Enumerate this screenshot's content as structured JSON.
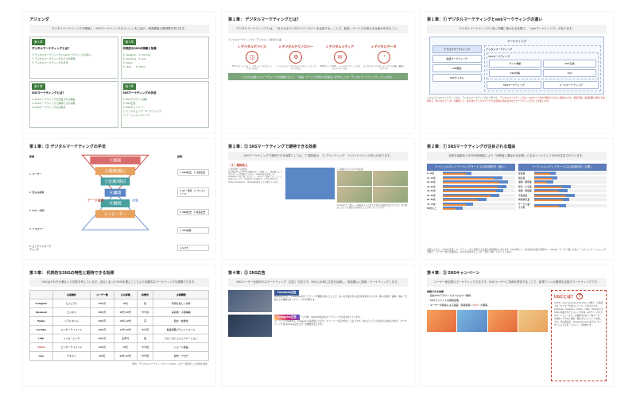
{
  "slides": {
    "s1": {
      "title": "アジェンダ",
      "subtitle": "デジタルマーケティングの概論と、SNSマーケティングのメリットをご紹介。新規顧客の獲得策を学びます。",
      "boxes": [
        {
          "chap": "第１章",
          "label": "デジタルマーケティングとは？",
          "items": [
            "デジタルマーケティングとwebマーケティングの違い",
            "デジタルマーケティングの５つの特徴",
            "デジタルマーケティングの手法"
          ]
        },
        {
          "chap": "第３章",
          "label": "代表的なSNSの特徴と効果",
          "items": [
            "Instagram　④ YouTube",
            "Facebook　⑤ note",
            "Twitter",
            "LINE　　⑥ TikTok"
          ]
        },
        {
          "chap": "第２章",
          "label": "SNSマーケティングとは？",
          "items": [
            "SNSマーケティングが注目される理由",
            "SNSマーケティングで期待できる効果",
            "SNSマーケティングの注意点"
          ]
        },
        {
          "chap": "第４章",
          "label": "SNSマーケティングの手法",
          "items": [
            "SNSアカウント運用",
            "SNS広告",
            "SNSキャンペーン",
            "インフルエンサーマーケティング",
            "ソーシャルリスニング"
          ]
        }
      ]
    },
    "s2": {
      "title": "第１章： デジタルマーケティングとは？",
      "subtitle": "デジタルマーケティングとは、『あらゆるデジタルテクノロジーを活用する』ことで、製品・サービスが売れる仕組みを作ること。",
      "lead": "デジタルマーケティングで『デジタル』と呼ばれる事。",
      "items": [
        {
          "num": "1",
          "label": "デジタルデバイス",
          "icon": "◫",
          "desc": "PCやスマートフォン、タブレットやスマートウォッチなど"
        },
        {
          "num": "2",
          "label": "デジタルテクノロジー",
          "icon": "⚙",
          "desc": "インターネットなどのテクノロジー・ビッグデータなど"
        },
        {
          "num": "3",
          "label": "デジタルメディア",
          "icon": "✉",
          "desc": "WEBサイトやSNS、メールやアプリ、デジタルサイネージなど"
        },
        {
          "num": "4",
          "label": "デジタルデータ",
          "icon": "◔",
          "desc": "デジタルデバイスやメディアから収集・蓄積したデータ"
        }
      ],
      "footer": "これらを活用してマーケティングの施策を立てて、「商品・サービスが売れる仕組み」を作ることを『デジタルマーケティング』といいます。"
    },
    "s3": {
      "title": "第１章：① デジタルマーケティングとwebマーケティングの違い",
      "subtitle": "デジタルマーケティングと良く同義に使われる言葉で、「webマーケティング」があります。",
      "box_title": "マーケティング",
      "analog": "アナログマーケティング",
      "analog_items": [
        "電話マーケティング",
        "DM発送",
        "SNSチャネル"
      ],
      "digital": "デジタルマーケティング",
      "web": "Webマーケティング",
      "web_items": [
        "サイト構築",
        "SEO対策",
        "Web広告",
        "LPO"
      ],
      "digital_items": [
        "SNSマーケティング",
        "メールマーケティング"
      ],
      "note1": "このようにwebマーケティングは、デジタルマーケティングの一部です。",
      "note2": "デジタルマーケティングは、webサイト内の行動だけでなく最新のIoTや、検索行動、動画視聴に関する情報など『あらゆるデータ』を駆使して、各手法とデジタルサービスを最適に組み合わせたマーケティングのことを指します。"
    },
    "s4": {
      "title": "第１章：③ デジタルマーケティングの手法",
      "left_head": "新規",
      "left_items": [
        "1. ユーザー",
        "2. 見込み顧客",
        "3. SNS・訪問",
        "4. フォロワー",
        "5. コンテンツマーケティング"
      ],
      "funnel": [
        "①認知",
        "②興味/関心",
        "③比較/検討",
        "④購買",
        "⑤継続",
        "⑥リピーター"
      ],
      "funnel_colors": [
        "#d96b6b",
        "#e8a25d",
        "#4aa0a0",
        "#5b87c7",
        "#4aa0a0",
        "#e8a25d"
      ],
      "right_head": "説明",
      "right_items": [
        "1. WEB広告　2. 交通広告",
        "3. HP・更新　4. プレスリリース",
        "5. WEB広告　6. 動画広告",
        "7. SNS運用",
        "",
        "メルマガ"
      ]
    },
    "s5": {
      "title": "第２章：② SNSマーケティングで期待できる効果",
      "subtitle": "SNSマーケティングで期待できる効果としては、① 認知拡大　② ブランディング　③ ロイヤリティの向上があります。",
      "head": "（１）認知向上",
      "sub_labels": [
        "若年層への認知",
        "店舗におけるSNS活用"
      ],
      "copy1": "若年層を中心にSNSの投稿を見て「認知」し、商品購入につながるケースが増えています。（Twitterを見て知った、Instagramで見て知ったなど…）\nSNSで「話題（トレンド）」を調べることで、Googleなどの検索サービスの代わりにTwitterやInstagram、TikTokを利用する人が増えています。",
      "copy2": "Instagramで「購入」の投稿をすると様々な商品の投稿が表示されるが、若年層はこのような投稿で店を知ることが多くなっています。"
    },
    "s6": {
      "title": "第２章：① SNSマーケティングが注目される理由",
      "subtitle": "深刻な高齢化とSNS利用増加により『消費者に選ばれる企業』になるツールとしてSNSが注目されています。",
      "ch1_title": "ソーシャルネットワーキングサービスの利用状況（個人）",
      "ch2_title": "ソーシャルメディアサービスの活用状況（企業）",
      "ch1_labels": [
        "6~12歳",
        "13~19歳",
        "20~29歳",
        "30~39歳",
        "40~49歳",
        "50~59歳",
        "60~69歳",
        "70~79歳",
        "80歳以上"
      ],
      "ch1_a": [
        40,
        82,
        90,
        88,
        84,
        78,
        60,
        42,
        28
      ],
      "ch1_b": [
        32,
        70,
        78,
        76,
        74,
        66,
        48,
        32,
        18
      ],
      "ch1_color_a": "#5b87c7",
      "ch1_color_b": "#e8883c",
      "ch2_labels": [
        "建設業",
        "製造業",
        "運輸・郵便業",
        "卸売・小売業",
        "金融・保険業",
        "不動産業",
        "情報通信業",
        "サービス業・その他"
      ],
      "ch2_a": [
        30,
        32,
        26,
        50,
        46,
        56,
        48,
        44
      ],
      "ch2_b": [
        22,
        24,
        18,
        38,
        34,
        44,
        40,
        34
      ],
      "note": "出所によると、SNSを広告・マーケティングに活用する企業も増加傾向にあります（2020年にて、約4割の企業が活用中）。\nSNSは『ユーザー数』が多く『コミュニケーション』が活発で、ユーザー側も企業側も、SNSを活用することが『当たり前』になっています。"
    },
    "s7": {
      "title": "第３章： 代表的なSNSの特性と期待できる効果",
      "subtitle": "SNSはそれぞれ異なった特性を有しています。自社に会ったSNSを選ぶことでより効果的なマーケティングを展開できます。",
      "cols": [
        "",
        "言語種性",
        "ユーザー数",
        "主な業種",
        "拡散性",
        "主要機能"
      ],
      "rows": [
        [
          "Instagram",
          "ビジュアル",
          "3300万",
          "20代",
          "低",
          "写真を楽しく共有"
        ],
        [
          "Facebook",
          "ビジネス",
          "2800万",
          "30代~50代",
          "やや高",
          "実名制・人脈構築"
        ],
        [
          "Twitter",
          "リアルタイム",
          "4500万",
          "10代~20代",
          "高",
          "短文・拡散性"
        ],
        [
          "YouTube",
          "エンターテイメント",
          "6500万",
          "10代~50代",
          "やや高",
          "動画視聴プラットフォーム"
        ],
        [
          "LINE",
          "メッセージング",
          "8600万",
          "全年代",
          "低",
          "クローズドコミュニケーション"
        ],
        [
          "TikTok",
          "エンターテイメント",
          "1000万",
          "10代",
          "やや低",
          "ショート動画"
        ],
        [
          "note",
          "テキスト",
          "600万",
          "20代~30代",
          "やや低",
          "創作・ブログ"
        ]
      ],
      "source": "資料：「デジタルマーケティングツール2021」より一部改変して引用を作成。"
    },
    "s8": {
      "title": "第４章：② SNS広告",
      "subtitle": "SNSユーザー全体向けのマーケティング（広告）方法です。SNS上の枠に広告を出稿し、商品購入に誘導・マーケティングします。",
      "ad1_tag": "Facebook広告",
      "ad1_desc": "効果測定を元に、Facebookのターゲティング機能を用いることで、多くの企業が高い広告効果を得ています。個人の属性・趣味・嗜好・行動などの精細なターゲティングが可能です。",
      "ad2_tag": "Instagram広告",
      "ad2_sub": "※この他、各SNSが各自のマーケティング手法を持っています。",
      "ad2_desc": "フィード上で投稿する、Instagramに最適化した広告（ストーリーズ広告含む）となります。特にビジュアル性の高い商材に有効で、ターゲティングはFacebook広告と同一の機能を使えます。"
    },
    "s9": {
      "title": "第４章：③ SNSキャンペーン",
      "subtitle": "ユーザー参加型のマーケティング方法です。SNSユーザーに特典を提供することで、新規ファンの獲得を目指すマーケティングです。",
      "left_head": "実施できる効果",
      "left_items": [
        "自社SNSアカウントのフォロワー獲得",
        "SNSでイベントの認知拡散",
        "ユーザーの投稿による製品・情報投稿（UGC）の獲得"
      ],
      "ugc_title": "UGCとは？",
      "ugc_body": "UGCは「User Generated Contents」の略で、日本語では「ユーザー生成コンテンツ」と訳されます。Facebook、Instagram、Twitter、LINE、TikTokなどのSNSに投稿されたコメントや写真、ECサイトのカスタマーレビューなど、企業側ではない一般ユーザーが制作してSNSに投稿・発信するコンテンツを指します。\n特に飲食店、Apparel＆Fashion系では「ユーザーによる写真・コメント」が重要です。",
      "strip_colors": [
        "#f5a25d",
        "#7bb8e0",
        "#e8883c",
        "#f0c987"
      ]
    }
  }
}
